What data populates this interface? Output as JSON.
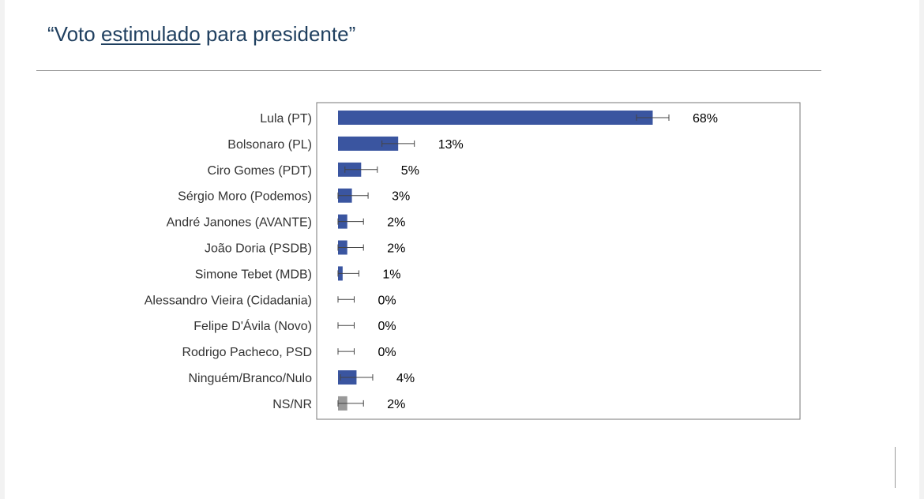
{
  "slide": {
    "title_open": "“Voto ",
    "title_underlined": "estimulado",
    "title_close": " para presidente”"
  },
  "chart_data": {
    "type": "bar",
    "orientation": "horizontal",
    "categories": [
      "Lula (PT)",
      "Bolsonaro (PL)",
      "Ciro Gomes (PDT)",
      "Sérgio Moro (Podemos)",
      "André Janones (AVANTE)",
      "João Doria (PSDB)",
      "Simone Tebet (MDB)",
      "Alessandro Vieira (Cidadania)",
      "Felipe D'Ávila (Novo)",
      "Rodrigo Pacheco, PSD",
      "Ninguém/Branco/Nulo",
      "NS/NR"
    ],
    "values": [
      68,
      13,
      5,
      3,
      2,
      2,
      1,
      0,
      0,
      0,
      4,
      2
    ],
    "value_labels": [
      "68%",
      "13%",
      "5%",
      "3%",
      "2%",
      "2%",
      "1%",
      "0%",
      "0%",
      "0%",
      "4%",
      "2%"
    ],
    "error_margin": 3.5,
    "bar_colors": [
      "#3a55a0",
      "#3a55a0",
      "#3a55a0",
      "#3a55a0",
      "#3a55a0",
      "#3a55a0",
      "#3a55a0",
      "#3a55a0",
      "#3a55a0",
      "#3a55a0",
      "#3a55a0",
      "#999999"
    ],
    "xlim": [
      0,
      100
    ],
    "grid": false,
    "legend": "none",
    "title": "",
    "xlabel": "",
    "ylabel": ""
  }
}
